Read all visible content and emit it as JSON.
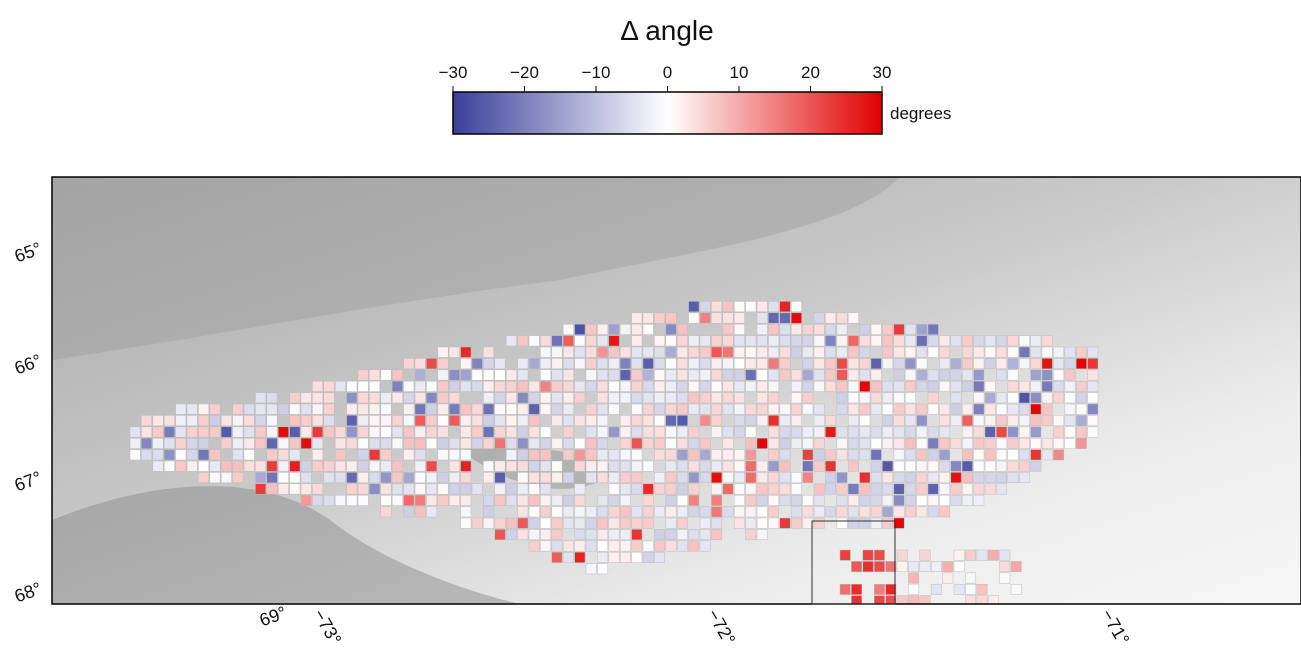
{
  "title": "Δ angle",
  "colorbar": {
    "lim": [
      -30,
      30
    ],
    "ticks": [
      {
        "value": -30,
        "label": "−30"
      },
      {
        "value": -20,
        "label": "−20"
      },
      {
        "value": -10,
        "label": "−10"
      },
      0,
      10,
      20,
      30
    ],
    "unit": "degrees",
    "colors": [
      "#3a3f9a",
      "#ffffff",
      "#e00000"
    ]
  },
  "map": {
    "lat_labels": [
      "65°",
      "66°",
      "67°",
      "68°"
    ],
    "lon_labels": [
      "69°",
      "−73°",
      "−72°",
      "−71°"
    ]
  }
}
